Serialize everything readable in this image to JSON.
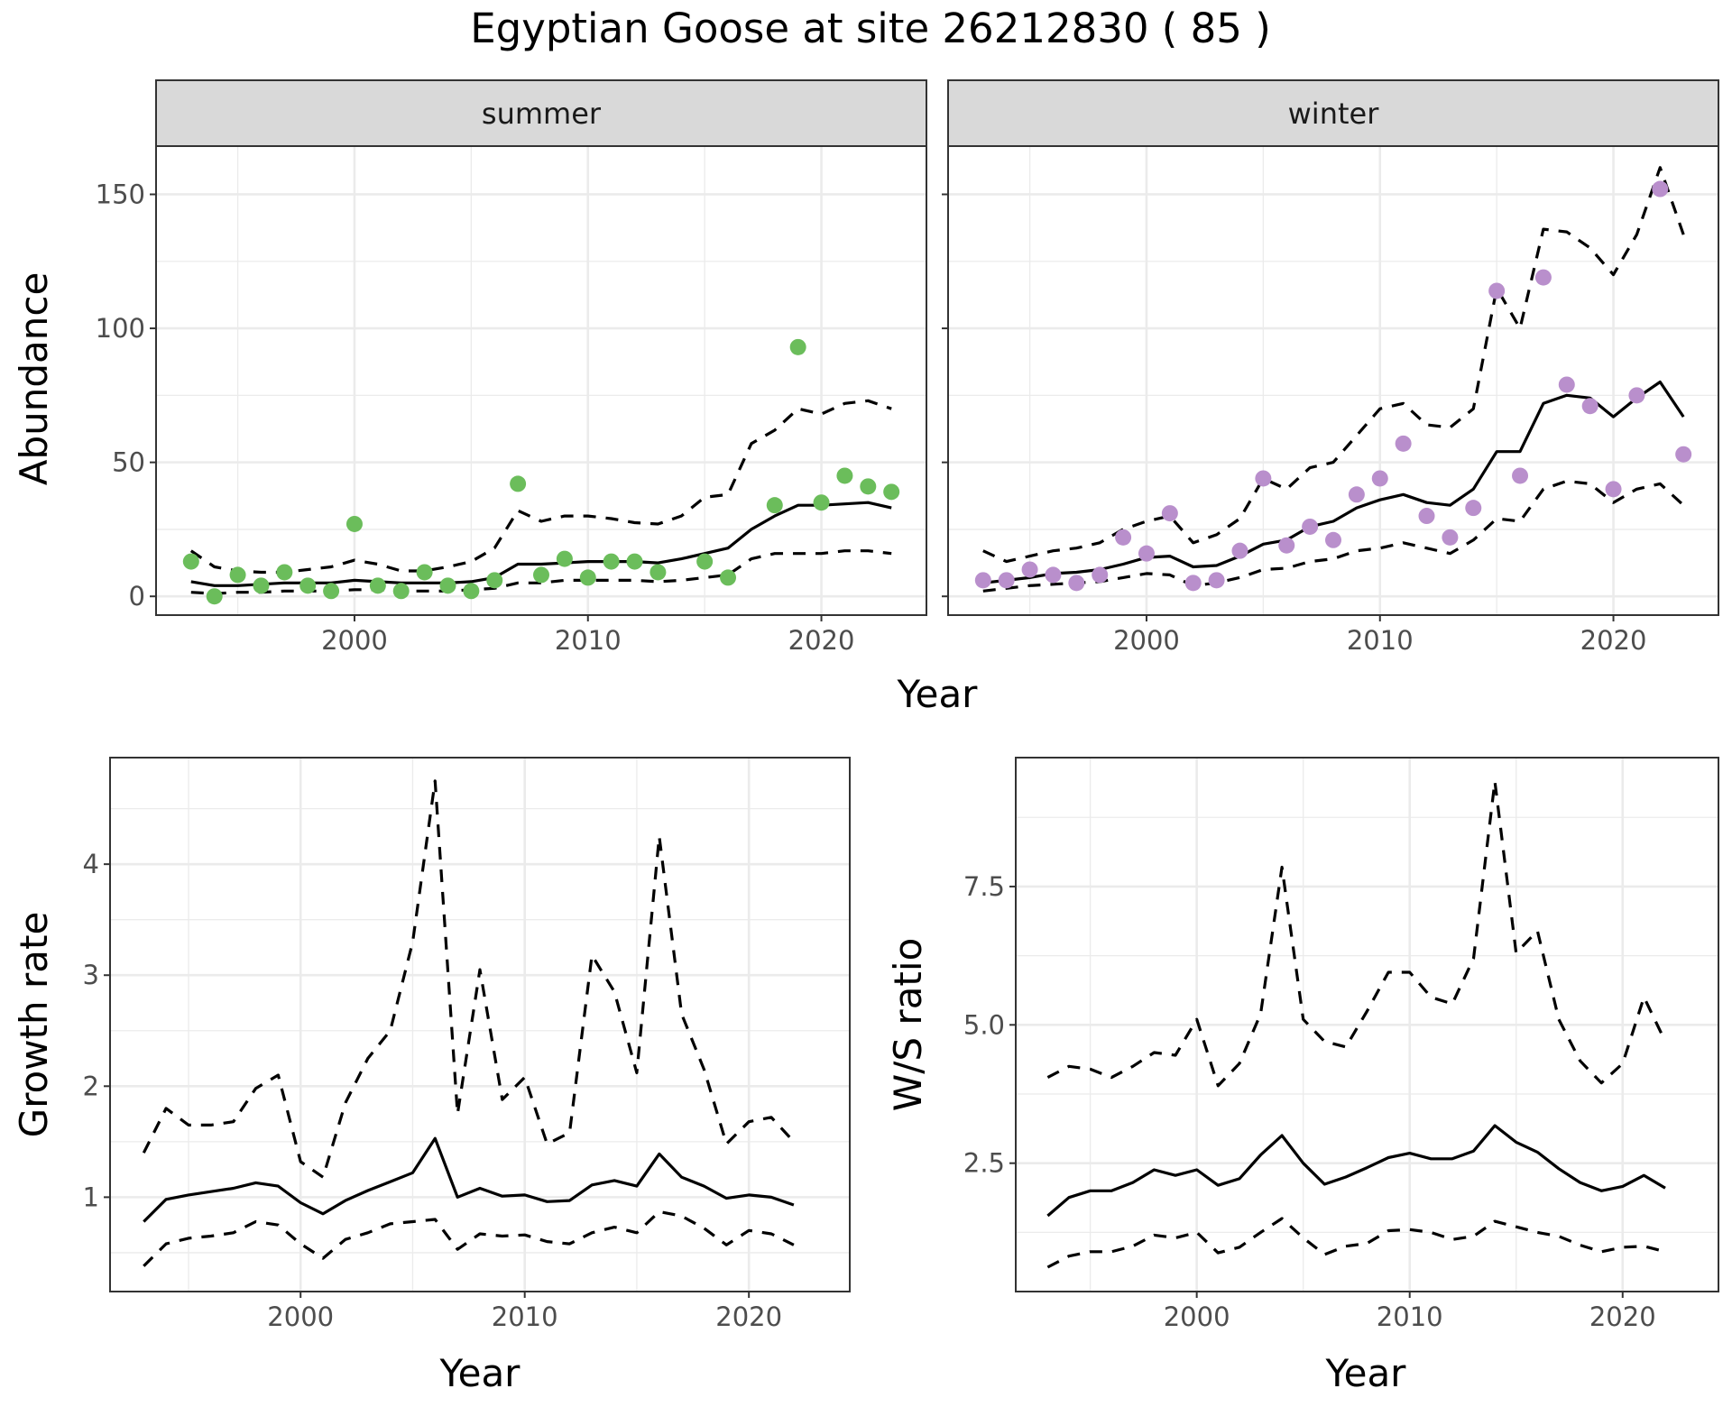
{
  "title": "Egyptian Goose at site 26212830 ( 85 )",
  "colors": {
    "summer_points": "#6bbd5b",
    "winter_points": "#b98fcc",
    "lines": "#000000",
    "strip": "#d9d9d9"
  },
  "chart_data": [
    {
      "id": "summer",
      "type": "line",
      "strip_label": "summer",
      "xlabel": "Year",
      "ylabel": "Abundance",
      "xlim": [
        1991.5,
        2024.5
      ],
      "ylim": [
        -7,
        168
      ],
      "x_ticks": [
        2000,
        2010,
        2020
      ],
      "y_ticks": [
        0,
        50,
        100,
        150
      ],
      "grid": true,
      "legend": "none",
      "x": [
        1993,
        1994,
        1995,
        1996,
        1997,
        1998,
        1999,
        2000,
        2001,
        2002,
        2003,
        2004,
        2005,
        2006,
        2007,
        2008,
        2009,
        2010,
        2011,
        2012,
        2013,
        2014,
        2015,
        2016,
        2017,
        2018,
        2019,
        2020,
        2021,
        2022,
        2023
      ],
      "series": [
        {
          "role": "upper",
          "style": "dashed",
          "values": [
            17,
            11,
            9.5,
            9,
            9,
            10,
            11,
            13.5,
            12,
            9.5,
            9.5,
            11,
            13,
            18,
            32,
            28,
            30,
            30,
            29,
            27.5,
            27,
            30,
            37,
            38,
            57,
            62,
            70,
            68,
            72,
            73,
            70
          ]
        },
        {
          "role": "estimate",
          "style": "solid",
          "values": [
            5.5,
            4,
            4,
            4.5,
            5,
            5,
            5,
            6,
            5.5,
            5,
            5,
            5,
            5.5,
            7,
            12,
            12,
            12.5,
            13,
            13,
            13,
            12.5,
            14,
            16,
            18,
            25,
            30,
            34,
            34,
            34.5,
            35,
            33
          ]
        },
        {
          "role": "lower",
          "style": "dashed",
          "values": [
            1.5,
            1,
            1.5,
            1.5,
            2,
            2,
            2,
            2.5,
            2.5,
            2,
            2,
            2,
            2.5,
            3,
            5,
            5,
            6,
            6,
            6,
            6,
            5.5,
            6,
            7,
            8,
            14,
            16,
            16,
            16,
            17,
            17,
            16
          ]
        },
        {
          "role": "observed",
          "style": "points",
          "x": [
            1993,
            1994,
            1995,
            1996,
            1997,
            1998,
            1999,
            2000,
            2001,
            2002,
            2003,
            2004,
            2005,
            2006,
            2007,
            2008,
            2009,
            2010,
            2011,
            2012,
            2013,
            2015,
            2016,
            2018,
            2019,
            2020,
            2021,
            2022,
            2023
          ],
          "values": [
            13,
            0,
            8,
            4,
            9,
            4,
            2,
            27,
            4,
            2,
            9,
            4,
            2,
            6,
            42,
            8,
            14,
            7,
            13,
            13,
            9,
            13,
            7,
            34,
            93,
            35,
            45,
            41,
            39
          ]
        }
      ]
    },
    {
      "id": "winter",
      "type": "line",
      "strip_label": "winter",
      "xlabel": "Year",
      "ylabel": "Abundance",
      "xlim": [
        1991.5,
        2024.5
      ],
      "ylim": [
        -7,
        168
      ],
      "x_ticks": [
        2000,
        2010,
        2020
      ],
      "y_ticks": [
        0,
        50,
        100,
        150
      ],
      "grid": true,
      "legend": "none",
      "x": [
        1993,
        1994,
        1995,
        1996,
        1997,
        1998,
        1999,
        2000,
        2001,
        2002,
        2003,
        2004,
        2005,
        2006,
        2007,
        2008,
        2009,
        2010,
        2011,
        2012,
        2013,
        2014,
        2015,
        2016,
        2017,
        2018,
        2019,
        2020,
        2021,
        2022,
        2023
      ],
      "series": [
        {
          "role": "upper",
          "style": "dashed",
          "values": [
            17,
            13,
            15,
            17,
            18,
            20,
            25,
            28,
            30,
            20,
            23,
            29,
            44,
            40,
            48,
            50,
            60,
            70,
            72,
            64,
            63,
            70,
            115,
            100,
            137,
            136,
            130,
            120,
            135,
            160,
            135
          ]
        },
        {
          "role": "estimate",
          "style": "solid",
          "values": [
            5,
            6,
            7,
            8.5,
            9,
            10,
            12,
            14.5,
            15,
            11,
            11.5,
            15,
            19.5,
            21,
            26,
            28,
            33,
            36,
            38,
            35,
            34,
            40,
            54,
            54,
            72,
            75,
            74,
            67,
            74,
            80,
            67
          ]
        },
        {
          "role": "lower",
          "style": "dashed",
          "values": [
            2,
            3,
            4,
            4.5,
            5,
            5.5,
            7,
            8.5,
            8,
            4,
            5,
            7,
            10,
            10.5,
            13,
            14,
            17,
            18,
            20,
            18,
            16,
            21,
            29,
            28,
            40,
            43,
            42,
            35,
            40,
            42,
            34
          ]
        },
        {
          "role": "observed",
          "style": "points",
          "x": [
            1993,
            1994,
            1995,
            1996,
            1997,
            1998,
            1999,
            2000,
            2001,
            2002,
            2003,
            2004,
            2005,
            2006,
            2007,
            2008,
            2009,
            2010,
            2011,
            2012,
            2013,
            2014,
            2015,
            2016,
            2017,
            2018,
            2019,
            2020,
            2021,
            2022,
            2023
          ],
          "values": [
            6,
            6,
            10,
            8,
            5,
            8,
            22,
            16,
            31,
            5,
            6,
            17,
            44,
            19,
            26,
            21,
            38,
            44,
            57,
            30,
            22,
            33,
            114,
            45,
            119,
            79,
            71,
            40,
            75,
            152,
            53
          ]
        }
      ]
    },
    {
      "id": "growth",
      "type": "line",
      "xlabel": "Year",
      "ylabel": "Growth rate",
      "xlim": [
        1991.5,
        2024.5
      ],
      "ylim": [
        0.15,
        4.96
      ],
      "x_ticks": [
        2000,
        2010,
        2020
      ],
      "y_ticks": [
        1,
        2,
        3,
        4
      ],
      "grid": true,
      "legend": "none",
      "x": [
        1993,
        1994,
        1995,
        1996,
        1997,
        1998,
        1999,
        2000,
        2001,
        2002,
        2003,
        2004,
        2005,
        2006,
        2007,
        2008,
        2009,
        2010,
        2011,
        2012,
        2013,
        2014,
        2015,
        2016,
        2017,
        2018,
        2019,
        2020,
        2021,
        2022
      ],
      "series": [
        {
          "role": "upper",
          "style": "dashed",
          "values": [
            1.4,
            1.8,
            1.65,
            1.65,
            1.68,
            1.98,
            2.1,
            1.32,
            1.18,
            1.85,
            2.25,
            2.5,
            3.3,
            4.75,
            1.75,
            3.05,
            1.88,
            2.08,
            1.48,
            1.58,
            3.18,
            2.85,
            2.12,
            4.25,
            2.65,
            2.15,
            1.48,
            1.68,
            1.72,
            1.5
          ]
        },
        {
          "role": "estimate",
          "style": "solid",
          "values": [
            0.78,
            0.98,
            1.02,
            1.05,
            1.08,
            1.13,
            1.1,
            0.95,
            0.85,
            0.97,
            1.06,
            1.14,
            1.22,
            1.53,
            1.0,
            1.08,
            1.01,
            1.02,
            0.96,
            0.97,
            1.11,
            1.15,
            1.1,
            1.39,
            1.18,
            1.1,
            0.99,
            1.02,
            1.0,
            0.93
          ]
        },
        {
          "role": "lower",
          "style": "dashed",
          "values": [
            0.38,
            0.58,
            0.63,
            0.65,
            0.68,
            0.78,
            0.75,
            0.58,
            0.45,
            0.62,
            0.68,
            0.76,
            0.78,
            0.8,
            0.53,
            0.67,
            0.65,
            0.66,
            0.6,
            0.58,
            0.68,
            0.73,
            0.68,
            0.87,
            0.83,
            0.72,
            0.57,
            0.7,
            0.67,
            0.57
          ]
        }
      ]
    },
    {
      "id": "ws_ratio",
      "type": "line",
      "xlabel": "Year",
      "ylabel": "W/S ratio",
      "xlim": [
        1991.5,
        2024.5
      ],
      "ylim": [
        0.18,
        9.83
      ],
      "x_ticks": [
        2000,
        2010,
        2020
      ],
      "y_ticks": [
        2.5,
        5.0,
        7.5
      ],
      "y_tick_labels": [
        "2.5",
        "5.0",
        "7.5"
      ],
      "grid": true,
      "legend": "none",
      "x": [
        1993,
        1994,
        1995,
        1996,
        1997,
        1998,
        1999,
        2000,
        2001,
        2002,
        2003,
        2004,
        2005,
        2006,
        2007,
        2008,
        2009,
        2010,
        2011,
        2012,
        2013,
        2014,
        2015,
        2016,
        2017,
        2018,
        2019,
        2020,
        2021,
        2022
      ],
      "series": [
        {
          "role": "upper",
          "style": "dashed",
          "values": [
            4.05,
            4.25,
            4.2,
            4.05,
            4.25,
            4.5,
            4.45,
            5.1,
            3.9,
            4.3,
            5.2,
            7.85,
            5.1,
            4.7,
            4.6,
            5.25,
            5.95,
            5.95,
            5.5,
            5.38,
            6.2,
            9.4,
            6.3,
            6.7,
            5.1,
            4.35,
            3.95,
            4.3,
            5.5,
            4.7
          ]
        },
        {
          "role": "estimate",
          "style": "solid",
          "values": [
            1.55,
            1.88,
            2.0,
            2.0,
            2.15,
            2.38,
            2.28,
            2.38,
            2.1,
            2.22,
            2.65,
            3.0,
            2.5,
            2.12,
            2.25,
            2.42,
            2.6,
            2.68,
            2.58,
            2.58,
            2.72,
            3.18,
            2.88,
            2.7,
            2.4,
            2.15,
            2.0,
            2.08,
            2.28,
            2.05
          ]
        },
        {
          "role": "lower",
          "style": "dashed",
          "values": [
            0.62,
            0.82,
            0.9,
            0.9,
            1.0,
            1.2,
            1.15,
            1.25,
            0.88,
            0.98,
            1.25,
            1.5,
            1.15,
            0.85,
            1.0,
            1.05,
            1.28,
            1.3,
            1.25,
            1.12,
            1.18,
            1.45,
            1.35,
            1.25,
            1.18,
            1.02,
            0.9,
            0.98,
            1.0,
            0.9
          ]
        }
      ]
    }
  ]
}
